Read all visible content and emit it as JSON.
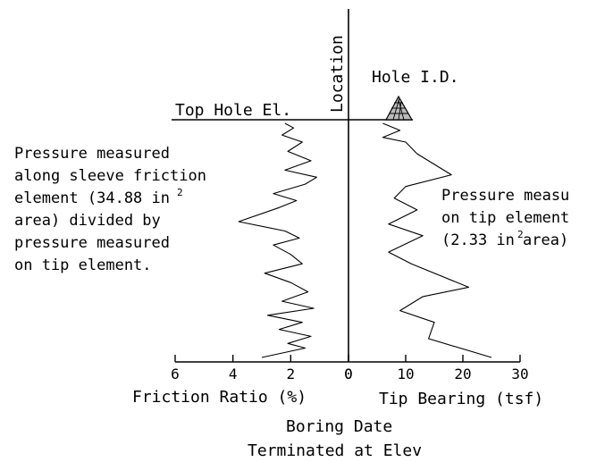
{
  "labels": {
    "location": "Location",
    "hole_id": "Hole I.D.",
    "top_hole_el": "Top Hole El.",
    "boring_date": "Boring Date",
    "terminated_at_elev": "Terminated at Elev"
  },
  "friction_note": {
    "lines": [
      "Pressure measured",
      "along sleeve friction",
      "element (34.88 in",
      "area) divided by",
      "pressure measured",
      "on tip element."
    ],
    "sup": "2"
  },
  "tip_note": {
    "lines": [
      "Pressure measu",
      "on tip element",
      "(2.33 in",
      " area)"
    ],
    "sup": "2"
  },
  "chart_data": [
    {
      "type": "line",
      "xlabel": "Friction Ratio (%)",
      "xlim": [
        6,
        0
      ],
      "x_ticks": [
        "6",
        "4",
        "2",
        "0"
      ],
      "series": [
        {
          "values": [
            [
              2.2,
              0.0
            ],
            [
              1.9,
              0.02
            ],
            [
              2.3,
              0.05
            ],
            [
              1.6,
              0.08
            ],
            [
              2.1,
              0.12
            ],
            [
              1.3,
              0.16
            ],
            [
              2.2,
              0.2
            ],
            [
              1.1,
              0.23
            ],
            [
              1.5,
              0.26
            ],
            [
              2.6,
              0.3
            ],
            [
              1.8,
              0.33
            ],
            [
              2.4,
              0.36
            ],
            [
              3.8,
              0.42
            ],
            [
              2.2,
              0.46
            ],
            [
              1.7,
              0.49
            ],
            [
              2.6,
              0.52
            ],
            [
              2.0,
              0.56
            ],
            [
              1.6,
              0.6
            ],
            [
              2.9,
              0.64
            ],
            [
              2.0,
              0.68
            ],
            [
              1.4,
              0.72
            ],
            [
              2.3,
              0.76
            ],
            [
              1.2,
              0.79
            ],
            [
              2.8,
              0.82
            ],
            [
              1.6,
              0.85
            ],
            [
              2.4,
              0.88
            ],
            [
              1.3,
              0.91
            ],
            [
              2.1,
              0.94
            ],
            [
              1.5,
              0.96
            ],
            [
              3.0,
              1.0
            ]
          ]
        }
      ]
    },
    {
      "type": "line",
      "xlabel": "Tip Bearing (tsf)",
      "xlim": [
        0,
        30
      ],
      "x_ticks": [
        "0",
        "10",
        "20",
        "30"
      ],
      "series": [
        {
          "values": [
            [
              6,
              0.0
            ],
            [
              9,
              0.03
            ],
            [
              6,
              0.06
            ],
            [
              10,
              0.08
            ],
            [
              12,
              0.13
            ],
            [
              18,
              0.22
            ],
            [
              10,
              0.27
            ],
            [
              8,
              0.32
            ],
            [
              12,
              0.37
            ],
            [
              7,
              0.43
            ],
            [
              13,
              0.48
            ],
            [
              7,
              0.55
            ],
            [
              11,
              0.6
            ],
            [
              21,
              0.7
            ],
            [
              13,
              0.74
            ],
            [
              9,
              0.8
            ],
            [
              15,
              0.85
            ],
            [
              14,
              0.92
            ],
            [
              25,
              1.0
            ]
          ]
        }
      ]
    }
  ]
}
